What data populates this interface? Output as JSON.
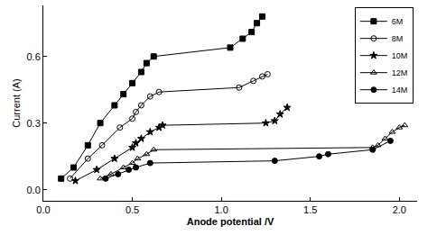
{
  "chart_data": {
    "type": "line",
    "x_label": "Anode potential /V",
    "y_label": "Current (A)",
    "xlim": [
      0,
      2.1
    ],
    "ylim": [
      -0.05,
      0.83
    ],
    "xticks": [
      {
        "value": 0,
        "label": "0.0"
      },
      {
        "value": 0.5,
        "label": "0.5"
      },
      {
        "value": 1,
        "label": "1.0"
      },
      {
        "value": 1.5,
        "label": "1.5"
      },
      {
        "value": 2,
        "label": "2.0"
      }
    ],
    "yticks": [
      {
        "value": 0,
        "label": "0.0"
      },
      {
        "value": 0.3,
        "label": "0.3"
      },
      {
        "value": 0.6,
        "label": "0.6"
      }
    ],
    "grid": false,
    "legend": "top right",
    "series": [
      {
        "name": "6M",
        "color": "#000000",
        "marker": "square",
        "x": [
          0.1,
          0.17,
          0.25,
          0.32,
          0.4,
          0.45,
          0.5,
          0.55,
          0.58,
          0.62,
          1.05,
          1.12,
          1.17,
          1.2,
          1.23
        ],
        "values": [
          0.05,
          0.1,
          0.2,
          0.3,
          0.38,
          0.43,
          0.48,
          0.53,
          0.57,
          0.6,
          0.64,
          0.68,
          0.71,
          0.75,
          0.78
        ]
      },
      {
        "name": "8M",
        "color": "#000000",
        "marker": "circle-open",
        "x": [
          0.15,
          0.25,
          0.33,
          0.43,
          0.5,
          0.52,
          0.55,
          0.6,
          0.65,
          1.1,
          1.18,
          1.23,
          1.26
        ],
        "values": [
          0.05,
          0.14,
          0.2,
          0.28,
          0.32,
          0.35,
          0.38,
          0.42,
          0.44,
          0.46,
          0.49,
          0.51,
          0.52
        ]
      },
      {
        "name": "10M",
        "color": "#000000",
        "marker": "star",
        "x": [
          0.18,
          0.3,
          0.4,
          0.5,
          0.52,
          0.55,
          0.6,
          0.65,
          0.67,
          1.25,
          1.3,
          1.33,
          1.37
        ],
        "values": [
          0.04,
          0.09,
          0.14,
          0.19,
          0.21,
          0.23,
          0.26,
          0.28,
          0.29,
          0.3,
          0.31,
          0.34,
          0.37
        ]
      },
      {
        "name": "12M",
        "color": "#000000",
        "marker": "triangle-up-open",
        "x": [
          0.32,
          0.38,
          0.45,
          0.5,
          0.53,
          0.58,
          0.62,
          1.85,
          1.88,
          1.92,
          1.96,
          2.0,
          2.03
        ],
        "values": [
          0.05,
          0.07,
          0.1,
          0.12,
          0.14,
          0.16,
          0.18,
          0.19,
          0.2,
          0.23,
          0.26,
          0.28,
          0.29
        ]
      },
      {
        "name": "14M",
        "color": "#000000",
        "marker": "circle",
        "x": [
          0.35,
          0.42,
          0.48,
          0.52,
          0.6,
          1.3,
          1.55,
          1.6,
          1.85,
          1.95
        ],
        "values": [
          0.05,
          0.07,
          0.09,
          0.1,
          0.12,
          0.13,
          0.15,
          0.16,
          0.18,
          0.22
        ]
      }
    ]
  }
}
